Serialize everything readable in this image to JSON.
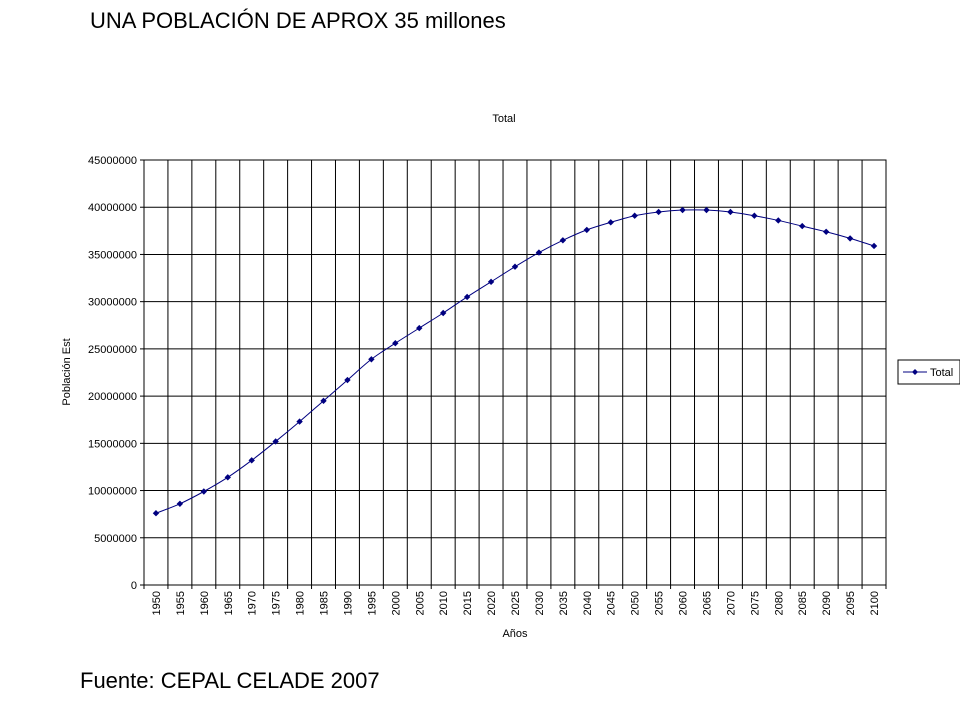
{
  "slide": {
    "title": "UNA POBLACIÓN DE APROX 35 millones",
    "source": "Fuente:  CEPAL CELADE 2007"
  },
  "chart_data": {
    "type": "line",
    "title": "Total",
    "xlabel": "Años",
    "ylabel": "Población Est",
    "ylim": [
      0,
      45000000
    ],
    "yticks": [
      0,
      5000000,
      10000000,
      15000000,
      20000000,
      25000000,
      30000000,
      35000000,
      40000000,
      45000000
    ],
    "categories": [
      "1950",
      "1955",
      "1960",
      "1965",
      "1970",
      "1975",
      "1980",
      "1985",
      "1990",
      "1995",
      "2000",
      "2005",
      "2010",
      "2015",
      "2020",
      "2025",
      "2030",
      "2035",
      "2040",
      "2045",
      "2050",
      "2055",
      "2060",
      "2065",
      "2070",
      "2075",
      "2080",
      "2085",
      "2090",
      "2095",
      "2100"
    ],
    "series": [
      {
        "name": "Total",
        "color": "#000080",
        "marker": "diamond",
        "values": [
          7600000,
          8600000,
          9900000,
          11400000,
          13200000,
          15200000,
          17300000,
          19500000,
          21700000,
          23900000,
          25600000,
          27200000,
          28800000,
          30500000,
          32100000,
          33700000,
          35200000,
          36500000,
          37600000,
          38400000,
          39100000,
          39500000,
          39700000,
          39700000,
          39500000,
          39100000,
          38600000,
          38000000,
          37400000,
          36700000,
          35900000
        ]
      }
    ],
    "grid": true,
    "legend": "right"
  }
}
